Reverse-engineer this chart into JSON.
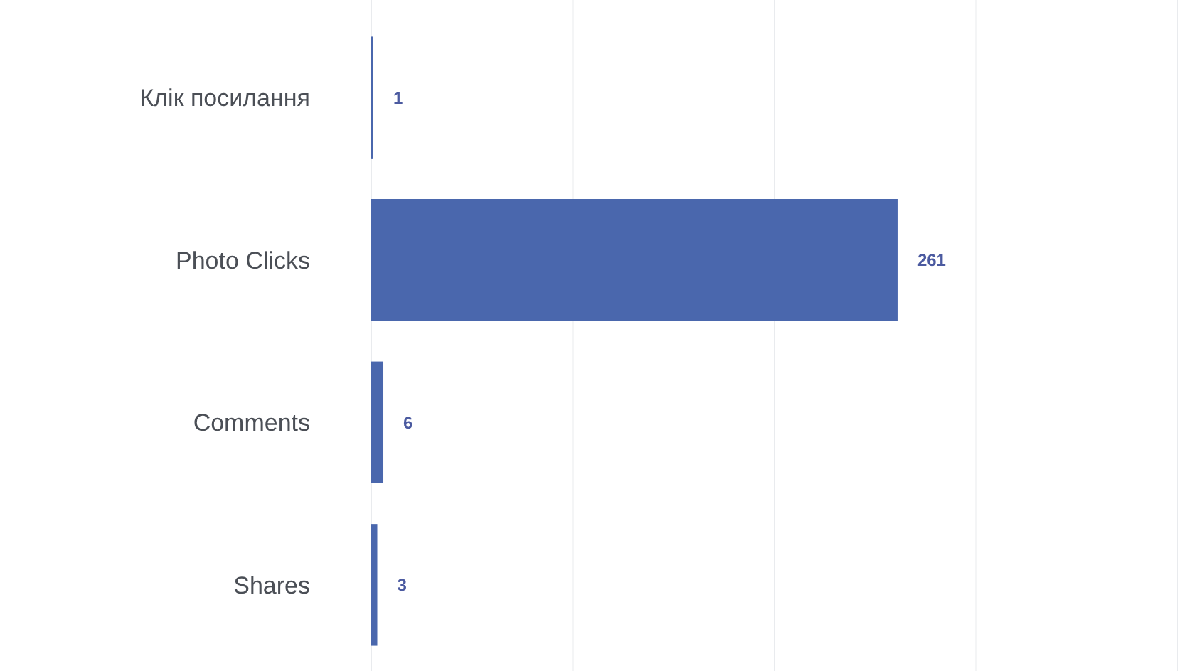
{
  "chart_data": {
    "type": "bar",
    "orientation": "horizontal",
    "categories": [
      "Клік посилання",
      "Photo Clicks",
      "Comments",
      "Shares"
    ],
    "values": [
      1,
      261,
      6,
      3
    ],
    "color": "#4a67ad",
    "xlim": [
      0,
      400
    ],
    "xticks": [
      {
        "value": 0,
        "label": null
      },
      {
        "value": 100,
        "label": null
      },
      {
        "value": 200,
        "label": null
      },
      {
        "value": 300,
        "label": null
      },
      {
        "value": 400,
        "label": null
      }
    ],
    "grid": "x",
    "tick_labels": "y",
    "data_labels": true
  }
}
